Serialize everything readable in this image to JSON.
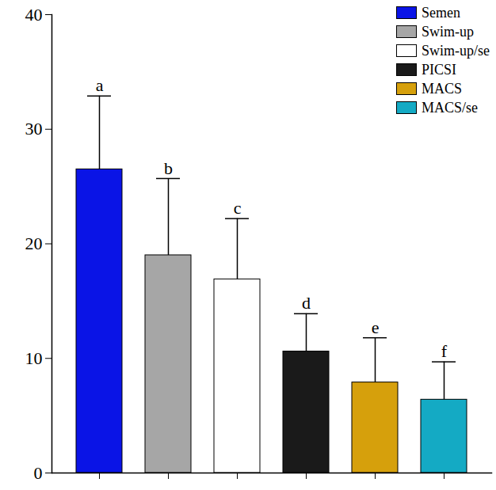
{
  "chart_data": {
    "type": "bar",
    "categories": [
      "Semen",
      "Swim-up",
      "Swim-up/se",
      "PICSI",
      "MACS",
      "MACS/se"
    ],
    "values": [
      26.5,
      19.0,
      16.9,
      10.6,
      7.9,
      6.4
    ],
    "errors": [
      6.4,
      6.7,
      5.3,
      3.3,
      3.9,
      3.3
    ],
    "annotations": [
      "a",
      "b",
      "c",
      "d",
      "e",
      "f"
    ],
    "colors": [
      "#0a14e6",
      "#a6a6a6",
      "#ffffff",
      "#1a1a1a",
      "#d6a00c",
      "#14aac4"
    ],
    "ylim": [
      0,
      40
    ],
    "yticks": [
      0,
      10,
      20,
      30,
      40
    ],
    "grid": false,
    "legend": "top-right",
    "tick_labels": "y"
  }
}
